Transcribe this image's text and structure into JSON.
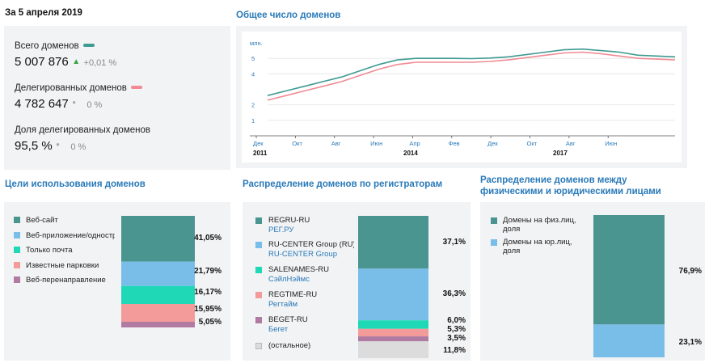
{
  "stats": {
    "date_heading": "За 5 апреля 2019",
    "total": {
      "label": "Всего доменов",
      "value": "5 007 876",
      "arrow": "▲",
      "change": "+0,01 %"
    },
    "delegated": {
      "label": "Делегированных доменов",
      "value": "4 782 647",
      "dot": "●",
      "change": "0 %"
    },
    "share": {
      "label": "Доля делегированных доменов",
      "value": "95,5 %",
      "dot": "●",
      "change": "0 %"
    }
  },
  "colors": {
    "total_series": "#3f9a92",
    "delegated_series": "#f08a93",
    "teal": "#4a9590",
    "sky": "#79bde9",
    "mint": "#1fd8b6",
    "salmon": "#f39b9b",
    "mauve": "#b07aa1",
    "gray": "#dcdcdc",
    "link_blue": "#2a7ab8"
  },
  "line_chart": {
    "title": "Общее число доменов",
    "ylabel": "млн.",
    "x_tick_labels": [
      "Дек",
      "Окт",
      "Авг",
      "Июн",
      "Апр",
      "Фев",
      "Дек",
      "Окт",
      "Авг",
      "Июн"
    ],
    "year_labels": [
      "2011",
      "2014",
      "2017"
    ]
  },
  "purposes": {
    "title": "Цели использования доменов",
    "legend": [
      "Веб-сайт",
      "Веб-приложение/одностраничник",
      "Только почта",
      "Известные парковки",
      "Веб-перенаправление"
    ],
    "pct_labels": [
      "41,05%",
      "21,79%",
      "16,17%",
      "15,95%",
      "5,05%"
    ]
  },
  "registrars": {
    "title": "Распределение доменов по регистраторам",
    "items": [
      {
        "name": "REGRU-RU",
        "sub": "РЕГ.РУ"
      },
      {
        "name": "RU-CENTER Group (RU)",
        "sub": "RU-CENTER Group"
      },
      {
        "name": "SALENAMES-RU",
        "sub": "СэйлНэймс"
      },
      {
        "name": "REGTIME-RU",
        "sub": "Регтайм"
      },
      {
        "name": "BEGET-RU",
        "sub": "Бегет"
      },
      {
        "name": "(остальное)",
        "sub": ""
      }
    ],
    "pct_labels": [
      "37,1%",
      "36,3%",
      "6,0%",
      "5,3%",
      "3,5%",
      "11,8%"
    ]
  },
  "persons": {
    "title": "Распределение доменов между физическими и юридическими лицами",
    "legend": [
      {
        "label1": "Домены на физ.лиц,",
        "label2": "доля"
      },
      {
        "label1": "Домены на юр.лиц,",
        "label2": "доля"
      }
    ],
    "pct_labels": [
      "76,9%",
      "23,1%"
    ]
  },
  "chart_data": [
    {
      "type": "line",
      "title": "Общее число доменов",
      "ylabel": "млн.",
      "ylim": [
        0,
        6
      ],
      "yticks": [
        1,
        2,
        4,
        5
      ],
      "x": [
        "2011-12",
        "2012-04",
        "2012-08",
        "2012-12",
        "2013-04",
        "2013-08",
        "2013-12",
        "2014-04",
        "2014-08",
        "2014-12",
        "2015-04",
        "2015-08",
        "2015-12",
        "2016-04",
        "2016-08",
        "2016-12",
        "2017-04",
        "2017-08",
        "2017-12",
        "2018-04",
        "2018-08",
        "2018-12",
        "2019-04"
      ],
      "series": [
        {
          "name": "Всего доменов",
          "values": [
            2.6,
            2.9,
            3.2,
            3.5,
            3.8,
            4.2,
            4.6,
            4.9,
            5.0,
            5.0,
            5.0,
            4.98,
            5.02,
            5.1,
            5.25,
            5.4,
            5.55,
            5.6,
            5.5,
            5.4,
            5.2,
            5.15,
            5.1
          ]
        },
        {
          "name": "Делегированных доменов",
          "values": [
            2.3,
            2.6,
            2.9,
            3.2,
            3.5,
            3.9,
            4.3,
            4.6,
            4.75,
            4.75,
            4.75,
            4.75,
            4.8,
            4.9,
            5.05,
            5.2,
            5.35,
            5.4,
            5.3,
            5.15,
            5.0,
            4.95,
            4.9
          ]
        }
      ]
    },
    {
      "type": "bar",
      "stacked": true,
      "title": "Цели использования доменов",
      "categories": [
        "Веб-сайт",
        "Веб-приложение/одностраничник",
        "Только почта",
        "Известные парковки",
        "Веб-перенаправление"
      ],
      "values": [
        41.05,
        21.79,
        16.17,
        15.95,
        5.05
      ],
      "unit": "%"
    },
    {
      "type": "bar",
      "stacked": true,
      "title": "Распределение доменов по регистраторам",
      "categories": [
        "REGRU-RU",
        "RU-CENTER Group (RU)",
        "SALENAMES-RU",
        "REGTIME-RU",
        "BEGET-RU",
        "(остальное)"
      ],
      "values": [
        37.1,
        36.3,
        6.0,
        5.3,
        3.5,
        11.8
      ],
      "unit": "%"
    },
    {
      "type": "bar",
      "stacked": true,
      "title": "Распределение доменов между физическими и юридическими лицами",
      "categories": [
        "Домены на физ.лиц, доля",
        "Домены на юр.лиц, доля"
      ],
      "values": [
        76.9,
        23.1
      ],
      "unit": "%"
    }
  ]
}
